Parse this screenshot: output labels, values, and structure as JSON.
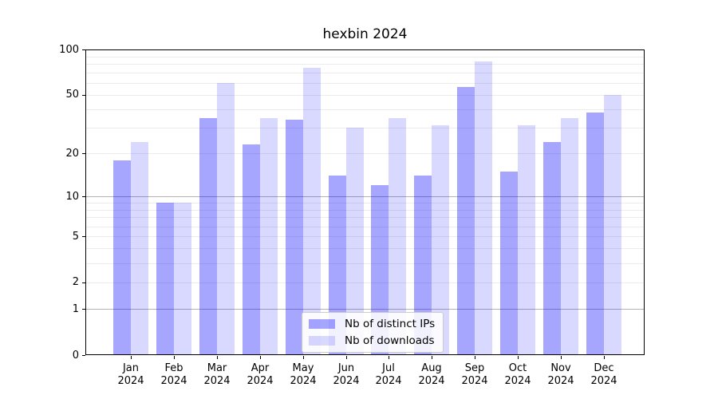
{
  "chart_data": {
    "type": "bar",
    "title": "hexbin 2024",
    "categories": [
      "Jan",
      "Feb",
      "Mar",
      "Apr",
      "May",
      "Jun",
      "Jul",
      "Aug",
      "Sep",
      "Oct",
      "Nov",
      "Dec"
    ],
    "year_label": "2024",
    "series": [
      {
        "name": "Nb of distinct IPs",
        "color": "rgba(0,0,255,0.35)",
        "values": [
          18,
          9,
          35,
          23,
          34,
          14,
          12,
          14,
          56,
          15,
          24,
          38
        ]
      },
      {
        "name": "Nb of downloads",
        "color": "rgba(0,0,255,0.15)",
        "values": [
          24,
          9,
          60,
          35,
          76,
          30,
          35,
          31,
          83,
          31,
          35,
          50
        ]
      }
    ],
    "yscale": "log1p",
    "ylim": [
      0,
      100
    ],
    "y_ticks": [
      0,
      1,
      2,
      5,
      10,
      20,
      50,
      100
    ],
    "y_minor_gridlines": [
      2,
      3,
      4,
      5,
      6,
      7,
      8,
      9,
      20,
      30,
      40,
      50,
      60,
      70,
      80,
      90
    ],
    "y_major_gridlines": [
      1,
      10,
      100
    ],
    "grid": "horizontal",
    "legend_position": "lower-center-inside",
    "colors": {
      "grid_minor": "#ececec",
      "grid_major": "#b3b3b3",
      "axis": "#000000",
      "background": "#ffffff"
    }
  }
}
